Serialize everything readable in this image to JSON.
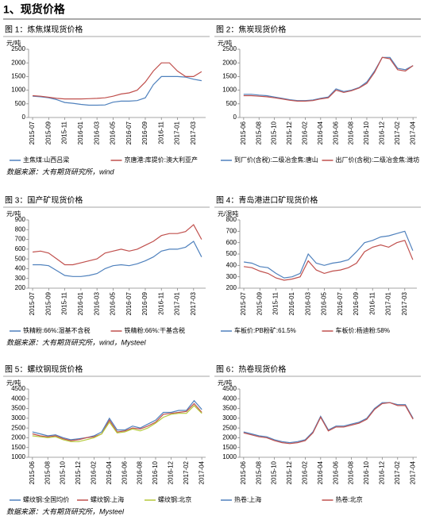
{
  "header": {
    "title": "1、现货价格"
  },
  "chart_data": [
    {
      "type": "line",
      "title": "图 1：炼焦煤现货价格",
      "y_label": "元/吨",
      "source": "数据来源：大有期货研究所，wind",
      "legend": "bottom",
      "categories": [
        "2015-07",
        null,
        "2015-09",
        null,
        "2015-11",
        null,
        "2016-01",
        null,
        "2016-03",
        null,
        "2016-05",
        null,
        "2016-07",
        null,
        "2016-09",
        null,
        "2016-11",
        null,
        "2017-01",
        null,
        "2017-03",
        null
      ],
      "ylim": [
        0,
        2500
      ],
      "yticks": [
        0,
        500,
        1000,
        1500,
        2000,
        2500
      ],
      "series": [
        {
          "name": "主焦煤:山西吕梁",
          "color": "#4f81bd",
          "values": [
            780,
            760,
            720,
            650,
            550,
            520,
            480,
            450,
            450,
            460,
            560,
            600,
            600,
            620,
            720,
            1200,
            1500,
            1500,
            1500,
            1480,
            1400,
            1350
          ]
        },
        {
          "name": "京唐港:库提价:澳大利亚产",
          "color": "#c0504d",
          "values": [
            800,
            780,
            740,
            700,
            680,
            680,
            680,
            690,
            700,
            720,
            780,
            860,
            900,
            1000,
            1300,
            1700,
            2000,
            2000,
            1700,
            1500,
            1500,
            1680
          ]
        }
      ]
    },
    {
      "type": "line",
      "title": "图 2：焦炭现货价格",
      "y_label": "元/吨",
      "legend": "bottom",
      "categories": [
        "2015-06",
        null,
        "2015-08",
        null,
        "2015-10",
        null,
        "2015-12",
        null,
        "2016-02",
        null,
        "2016-04",
        null,
        "2016-06",
        null,
        "2016-08",
        null,
        "2016-10",
        null,
        "2016-12",
        null,
        "2017-02",
        null,
        "2017-04"
      ],
      "ylim": [
        0,
        2500
      ],
      "yticks": [
        0,
        500,
        1000,
        1500,
        2000,
        2500
      ],
      "series": [
        {
          "name": "到厂价(含税):二级冶金焦:唐山",
          "color": "#4f81bd",
          "values": [
            850,
            850,
            820,
            800,
            750,
            700,
            650,
            620,
            620,
            640,
            700,
            750,
            1050,
            950,
            1000,
            1100,
            1300,
            1700,
            2200,
            2200,
            1800,
            1750,
            1900
          ]
        },
        {
          "name": "出厂价(含税):二级冶金焦:潍坊",
          "color": "#c0504d",
          "values": [
            800,
            800,
            780,
            760,
            720,
            680,
            630,
            600,
            600,
            620,
            680,
            720,
            1000,
            920,
            980,
            1080,
            1250,
            1650,
            2200,
            2150,
            1750,
            1700,
            1900
          ]
        }
      ]
    },
    {
      "type": "line",
      "title": "图 3：国产矿现货价格",
      "y_label": "元/吨",
      "source": "数据来源：大有期货研究所，wind，Mysteel",
      "legend": "bottom",
      "categories": [
        "2015-07",
        null,
        "2015-09",
        null,
        "2015-11",
        null,
        "2016-01",
        null,
        "2016-03",
        null,
        "2016-05",
        null,
        "2016-07",
        null,
        "2016-09",
        null,
        "2016-11",
        null,
        "2017-01",
        null,
        "2017-03",
        null
      ],
      "ylim": [
        200,
        900
      ],
      "yticks": [
        200,
        300,
        400,
        500,
        600,
        700,
        800,
        900
      ],
      "series": [
        {
          "name": "铁精粉:66%:湿基不含税",
          "color": "#4f81bd",
          "values": [
            440,
            440,
            430,
            380,
            330,
            320,
            320,
            330,
            350,
            400,
            430,
            440,
            430,
            450,
            480,
            520,
            580,
            600,
            600,
            620,
            680,
            520
          ]
        },
        {
          "name": "铁精粉:66%:干基含税",
          "color": "#c0504d",
          "values": [
            570,
            580,
            560,
            500,
            440,
            440,
            460,
            480,
            500,
            560,
            580,
            600,
            580,
            600,
            640,
            680,
            740,
            760,
            760,
            780,
            850,
            700
          ]
        }
      ]
    },
    {
      "type": "line",
      "title": "图 4：青岛港进口矿现货价格",
      "y_label": "元/湿吨",
      "legend": "bottom",
      "categories": [
        "2015-07",
        null,
        "2015-09",
        null,
        "2015-11",
        null,
        "2016-01",
        null,
        "2016-03",
        null,
        "2016-05",
        null,
        "2016-07",
        null,
        "2016-09",
        null,
        "2016-11",
        null,
        "2017-01",
        null,
        "2017-03",
        null
      ],
      "ylim": [
        200,
        800
      ],
      "yticks": [
        200,
        300,
        400,
        500,
        600,
        700,
        800
      ],
      "series": [
        {
          "name": "车板价:PB粉矿:61.5%",
          "color": "#4f81bd",
          "values": [
            430,
            420,
            390,
            380,
            330,
            290,
            300,
            330,
            500,
            420,
            400,
            420,
            430,
            450,
            520,
            600,
            620,
            650,
            660,
            680,
            700,
            530
          ]
        },
        {
          "name": "车板价:杨迪粉:58%",
          "color": "#c0504d",
          "values": [
            390,
            380,
            350,
            330,
            290,
            270,
            280,
            300,
            440,
            360,
            330,
            350,
            360,
            380,
            420,
            520,
            560,
            580,
            560,
            600,
            620,
            450
          ]
        }
      ]
    },
    {
      "type": "line",
      "title": "图 5：螺纹钢现货价格",
      "y_label": "元/吨",
      "source": "数据来源：大有期货研究所，Mysteel",
      "legend": "bottom",
      "categories": [
        "2015-06",
        null,
        "2015-08",
        null,
        "2015-10",
        null,
        "2015-12",
        null,
        "2016-02",
        null,
        "2016-04",
        null,
        "2016-06",
        null,
        "2016-08",
        null,
        "2016-10",
        null,
        "2016-12",
        null,
        "2017-02",
        null,
        "2017-04"
      ],
      "ylim": [
        1000,
        4500
      ],
      "yticks": [
        1000,
        1500,
        2000,
        2500,
        3000,
        3500,
        4000,
        4500
      ],
      "series": [
        {
          "name": "螺纹钢:全国均价",
          "color": "#4f81bd",
          "values": [
            2300,
            2200,
            2100,
            2150,
            2000,
            1900,
            1950,
            2000,
            2100,
            2300,
            3000,
            2400,
            2400,
            2600,
            2500,
            2700,
            2900,
            3300,
            3300,
            3400,
            3400,
            3900,
            3450
          ]
        },
        {
          "name": "螺纹钢:上海",
          "color": "#c0504d",
          "values": [
            2200,
            2100,
            2050,
            2100,
            1950,
            1850,
            1900,
            2000,
            2050,
            2200,
            2900,
            2300,
            2350,
            2500,
            2450,
            2600,
            2800,
            3200,
            3250,
            3300,
            3350,
            3750,
            3300
          ]
        },
        {
          "name": "螺纹钢:北京",
          "color": "#b5c93a",
          "values": [
            2100,
            2050,
            2000,
            2050,
            1900,
            1800,
            1800,
            1900,
            2000,
            2200,
            2800,
            2250,
            2300,
            2450,
            2350,
            2500,
            2750,
            3050,
            3200,
            3250,
            3250,
            3650,
            3250
          ]
        }
      ]
    },
    {
      "type": "line",
      "title": "图 6：热卷现货价格",
      "y_label": "元/吨",
      "legend": "bottom",
      "categories": [
        "2015-06",
        null,
        "2015-08",
        null,
        "2015-10",
        null,
        "2015-12",
        null,
        "2016-02",
        null,
        "2016-04",
        null,
        "2016-06",
        null,
        "2016-08",
        null,
        "2016-10",
        null,
        "2016-12",
        null,
        "2017-02",
        null,
        "2017-04"
      ],
      "ylim": [
        1000,
        4500
      ],
      "yticks": [
        1000,
        1500,
        2000,
        2500,
        3000,
        3500,
        4000,
        4500
      ],
      "series": [
        {
          "name": "热卷:上海",
          "color": "#4f81bd",
          "values": [
            2300,
            2200,
            2100,
            2050,
            1900,
            1800,
            1750,
            1800,
            1900,
            2300,
            3100,
            2400,
            2600,
            2600,
            2700,
            2800,
            3000,
            3500,
            3800,
            3800,
            3700,
            3700,
            3000
          ]
        },
        {
          "name": "热卷:北京",
          "color": "#c0504d",
          "values": [
            2250,
            2150,
            2050,
            2000,
            1850,
            1750,
            1700,
            1750,
            1850,
            2250,
            3050,
            2350,
            2550,
            2550,
            2650,
            2750,
            2950,
            3450,
            3750,
            3800,
            3650,
            3650,
            2950
          ]
        }
      ]
    }
  ]
}
